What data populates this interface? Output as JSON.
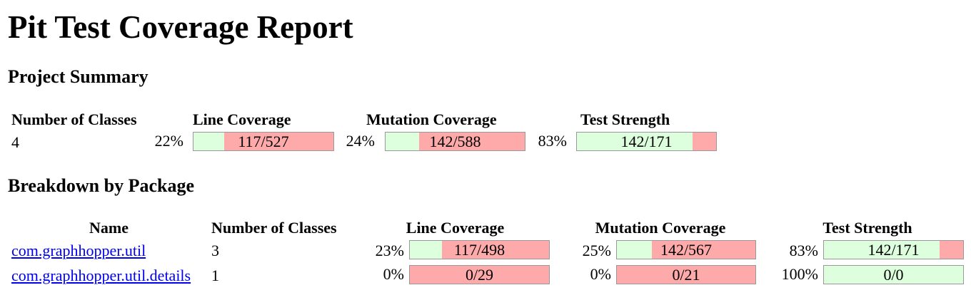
{
  "title": "Pit Test Coverage Report",
  "project_summary": {
    "heading": "Project Summary",
    "headers": {
      "classes": "Number of Classes",
      "line": "Line Coverage",
      "mutation": "Mutation Coverage",
      "strength": "Test Strength"
    },
    "classes": "4",
    "line": {
      "percent": "22%",
      "ratio": "117/527",
      "fraction": 0.22
    },
    "mutation": {
      "percent": "24%",
      "ratio": "142/588",
      "fraction": 0.24
    },
    "strength": {
      "percent": "83%",
      "ratio": "142/171",
      "fraction": 0.83
    }
  },
  "breakdown": {
    "heading": "Breakdown by Package",
    "headers": {
      "name": "Name",
      "classes": "Number of Classes",
      "line": "Line Coverage",
      "mutation": "Mutation Coverage",
      "strength": "Test Strength"
    },
    "rows": [
      {
        "name": "com.graphhopper.util",
        "classes": "3",
        "line": {
          "percent": "23%",
          "ratio": "117/498",
          "fraction": 0.23
        },
        "mutation": {
          "percent": "25%",
          "ratio": "142/567",
          "fraction": 0.25
        },
        "strength": {
          "percent": "83%",
          "ratio": "142/171",
          "fraction": 0.83
        }
      },
      {
        "name": "com.graphhopper.util.details",
        "classes": "1",
        "line": {
          "percent": "0%",
          "ratio": "0/29",
          "fraction": 0.0
        },
        "mutation": {
          "percent": "0%",
          "ratio": "0/21",
          "fraction": 0.0
        },
        "strength": {
          "percent": "100%",
          "ratio": "0/0",
          "fraction": 1.0
        }
      }
    ]
  },
  "colors": {
    "covered": "#ddffdd",
    "uncovered": "#ffaaaa",
    "link": "#0000ee"
  }
}
